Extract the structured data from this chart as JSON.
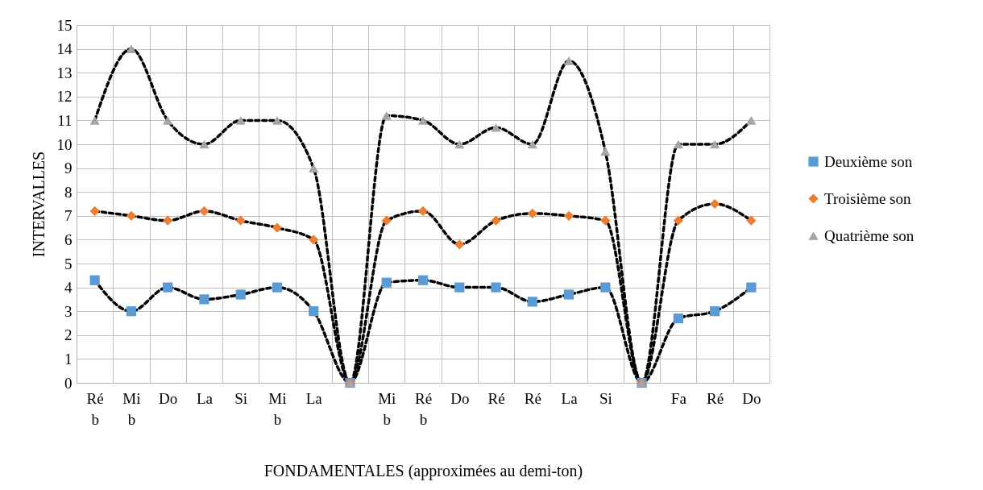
{
  "chart_data": {
    "type": "line",
    "xlabel": "FONDAMENTALES (approximées au demi-ton)",
    "ylabel": "INTERVALLES",
    "categories": [
      "Ré b",
      "Mi b",
      "Do",
      "La",
      "Si",
      "Mi b",
      "La",
      null,
      "Mi b",
      "Ré b",
      "Do",
      "Ré",
      "Ré",
      "La",
      "Si",
      null,
      "Fa",
      "Ré",
      "Do"
    ],
    "series": [
      {
        "name": "Deuxième son",
        "color": "#5b9bd5",
        "marker": "square",
        "values": [
          4.3,
          3.0,
          4.0,
          3.5,
          3.7,
          4.0,
          3.0,
          0,
          4.2,
          4.3,
          4.0,
          4.0,
          3.4,
          3.7,
          4.0,
          0,
          2.7,
          3.0,
          4.0
        ]
      },
      {
        "name": "Troisième son",
        "color": "#ed7d31",
        "marker": "diamond",
        "values": [
          7.2,
          7.0,
          6.8,
          7.2,
          6.8,
          6.5,
          6.0,
          0,
          6.8,
          7.2,
          5.8,
          6.8,
          7.1,
          7.0,
          6.8,
          0,
          6.8,
          7.5,
          6.8
        ]
      },
      {
        "name": "Quatrième son",
        "color": "#a5a5a5",
        "marker": "triangle",
        "values": [
          11,
          14,
          11,
          10,
          11,
          11,
          9,
          0,
          11.2,
          11,
          10,
          10.7,
          10,
          13.5,
          9.7,
          0,
          10,
          10,
          11
        ]
      }
    ],
    "ylim": [
      0,
      15
    ],
    "yticks": [
      0,
      1,
      2,
      3,
      4,
      5,
      6,
      7,
      8,
      9,
      10,
      11,
      12,
      13,
      14,
      15
    ],
    "grid": true,
    "legend": "right",
    "line_style": "dashed"
  }
}
